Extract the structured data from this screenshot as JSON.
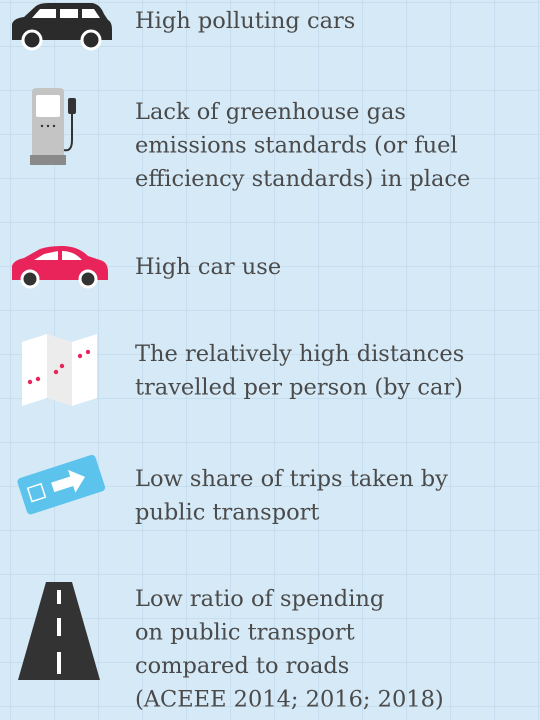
{
  "items": [
    {
      "lines": [
        "High polluting cars"
      ]
    },
    {
      "lines": [
        "Lack of greenhouse gas",
        "emissions standards (or fuel",
        "efficiency standards) in place"
      ]
    },
    {
      "lines": [
        "High car use"
      ]
    },
    {
      "lines": [
        "The relatively high distances",
        "travelled per person (by car)"
      ]
    },
    {
      "lines": [
        "Low share of trips taken by",
        "public transport"
      ]
    },
    {
      "lines": [
        "Low ratio of spending",
        "on public transport",
        "compared to roads",
        "(ACEEE 2014; 2016; 2018)"
      ]
    }
  ]
}
